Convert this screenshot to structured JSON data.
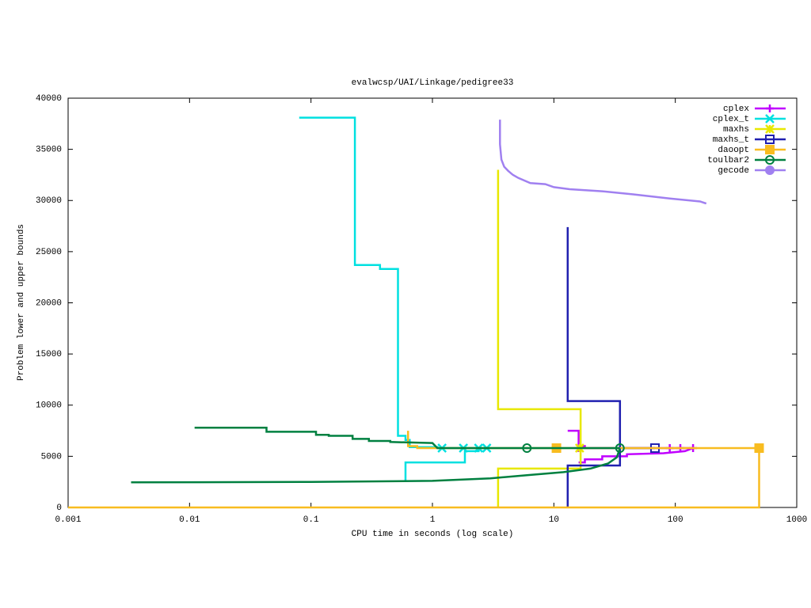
{
  "chart_data": {
    "type": "line",
    "title": "evalwcsp/UAI/Linkage/pedigree33",
    "xlabel": "CPU time in seconds (log scale)",
    "ylabel": "Problem lower and upper bounds",
    "xscale": "log",
    "xlim": [
      0.001,
      1000
    ],
    "xticks": [
      0.001,
      0.01,
      0.1,
      1,
      10,
      100,
      1000
    ],
    "ylim": [
      0,
      40000
    ],
    "yticks": [
      0,
      5000,
      10000,
      15000,
      20000,
      25000,
      30000,
      35000,
      40000
    ],
    "grid": false,
    "legend": "top-right",
    "series": [
      {
        "name": "cplex",
        "color": "#c000ff",
        "marker": "plus",
        "x": [
          13,
          16,
          16,
          18,
          18,
          140,
          null,
          16,
          18,
          18,
          25,
          25,
          40,
          40,
          80,
          120,
          140
        ],
        "values": [
          7500,
          7500,
          6000,
          6000,
          5800,
          5800,
          null,
          4400,
          4400,
          4700,
          4700,
          5000,
          5000,
          5200,
          5300,
          5500,
          5800
        ],
        "points": {
          "x": [
            16,
            90,
            110,
            140
          ],
          "values": [
            5800,
            5800,
            5800,
            5800
          ]
        }
      },
      {
        "name": "cplex_t",
        "color": "#00e0e0",
        "marker": "cross",
        "x": [
          0.08,
          0.23,
          0.23,
          0.37,
          0.37,
          0.52,
          0.52,
          0.6,
          0.6,
          0.65,
          0.65,
          1.1,
          1.1,
          2.8,
          null,
          0.6,
          0.6,
          1.85,
          1.85,
          2.4,
          2.4,
          2.8
        ],
        "values": [
          38100,
          38100,
          23700,
          23700,
          23300,
          23300,
          7000,
          7000,
          6600,
          6600,
          5900,
          5900,
          5800,
          5800,
          null,
          2600,
          4400,
          4400,
          5500,
          5500,
          5800,
          5800
        ],
        "points": {
          "x": [
            1.2,
            1.8,
            2.4,
            2.8
          ],
          "values": [
            5800,
            5800,
            5800,
            5800
          ]
        }
      },
      {
        "name": "maxhs",
        "color": "#e8e800",
        "marker": "star",
        "x": [
          3.47,
          3.47,
          16.6,
          16.6,
          18,
          null,
          3.47,
          3.47,
          16.6,
          16.6
        ],
        "values": [
          33000,
          9600,
          9600,
          5800,
          5800,
          null,
          0,
          3800,
          3800,
          5800
        ],
        "points": {
          "x": [
            16.3
          ],
          "values": [
            5800
          ]
        }
      },
      {
        "name": "maxhs_t",
        "color": "#2020b0",
        "marker": "square",
        "x": [
          13,
          13,
          35,
          35,
          68,
          null,
          13,
          13,
          35,
          35
        ],
        "values": [
          27400,
          10400,
          10400,
          5800,
          5800,
          null,
          0,
          4100,
          4100,
          5800
        ],
        "points": {
          "x": [
            68
          ],
          "values": [
            5800
          ]
        }
      },
      {
        "name": "daoopt",
        "color": "#f8bc20",
        "marker": "filled-square",
        "x": [
          0.63,
          0.63,
          0.75,
          0.75,
          490,
          null,
          0.001,
          490,
          490
        ],
        "values": [
          7500,
          6000,
          6000,
          5800,
          5800,
          null,
          0,
          0,
          5800
        ],
        "points": {
          "x": [
            10.5,
            490
          ],
          "values": [
            5800,
            5800
          ]
        }
      },
      {
        "name": "toulbar2",
        "color": "#008040",
        "marker": "circle",
        "x": [
          0.011,
          0.043,
          0.043,
          0.11,
          0.11,
          0.14,
          0.14,
          0.22,
          0.22,
          0.3,
          0.3,
          0.45,
          0.45,
          1,
          1.1,
          35,
          null,
          0.0033,
          0.1,
          1,
          3,
          6,
          12,
          20,
          28,
          33,
          35
        ],
        "values": [
          7800,
          7800,
          7400,
          7400,
          7100,
          7100,
          7000,
          7000,
          6700,
          6700,
          6500,
          6500,
          6400,
          6300,
          5800,
          5800,
          null,
          2450,
          2500,
          2600,
          2850,
          3150,
          3450,
          3800,
          4300,
          4900,
          5800
        ],
        "points": {
          "x": [
            6,
            35
          ],
          "values": [
            5800,
            5800
          ]
        }
      },
      {
        "name": "gecode",
        "color": "#a080f0",
        "marker": "filled-circle",
        "x": [
          3.6,
          3.6,
          3.7,
          3.9,
          4.2,
          4.6,
          5.1,
          6.4,
          8.5,
          10,
          13.5,
          25,
          45,
          90,
          160,
          180
        ],
        "values": [
          37900,
          35500,
          34000,
          33300,
          32900,
          32500,
          32200,
          31700,
          31600,
          31300,
          31100,
          30900,
          30600,
          30200,
          29900,
          29700
        ],
        "points": {
          "x": [],
          "values": []
        }
      }
    ]
  }
}
